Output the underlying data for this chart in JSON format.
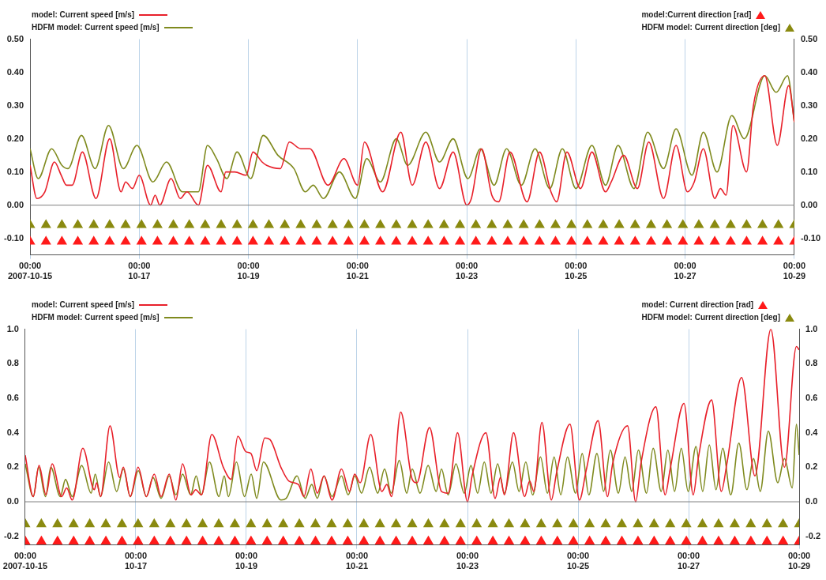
{
  "chart_data": [
    {
      "type": "line",
      "legend": "top",
      "grid": "x",
      "xlim": [
        "2007-10-15T00:00",
        "2007-10-29T00:00"
      ],
      "xticks": [
        {
          "value": "2007-10-15T00:00",
          "label": "00:00\n2007-10-15"
        },
        {
          "value": "2007-10-17T00:00",
          "label": "00:00\n10-17"
        },
        {
          "value": "2007-10-19T00:00",
          "label": "00:00\n10-19"
        },
        {
          "value": "2007-10-21T00:00",
          "label": "00:00\n10-21"
        },
        {
          "value": "2007-10-23T00:00",
          "label": "00:00\n10-23"
        },
        {
          "value": "2007-10-25T00:00",
          "label": "00:00\n10-25"
        },
        {
          "value": "2007-10-27T00:00",
          "label": "00:00\n10-27"
        },
        {
          "value": "2007-10-29T00:00",
          "label": "00:00\n10-29"
        }
      ],
      "x": [
        "2007-10-15T00:00",
        "2007-10-15T07:00",
        "2007-10-15T14:00",
        "2007-10-15T21:00",
        "2007-10-16T04:00",
        "2007-10-16T11:00",
        "2007-10-16T18:00",
        "2007-10-17T01:00",
        "2007-10-17T08:00",
        "2007-10-17T15:00",
        "2007-10-17T22:00",
        "2007-10-18T05:00",
        "2007-10-18T12:00",
        "2007-10-18T19:00",
        "2007-10-19T02:00",
        "2007-10-19T09:00",
        "2007-10-19T16:00",
        "2007-10-19T23:00",
        "2007-10-20T06:00",
        "2007-10-20T13:00",
        "2007-10-20T20:00",
        "2007-10-21T03:00",
        "2007-10-21T10:00",
        "2007-10-21T17:00",
        "2007-10-22T00:00",
        "2007-10-22T07:00",
        "2007-10-22T14:00",
        "2007-10-22T21:00",
        "2007-10-23T04:00",
        "2007-10-23T11:00",
        "2007-10-23T18:00",
        "2007-10-24T01:00",
        "2007-10-24T08:00",
        "2007-10-24T15:00",
        "2007-10-24T22:00",
        "2007-10-25T05:00",
        "2007-10-25T12:00",
        "2007-10-25T19:00",
        "2007-10-26T02:00",
        "2007-10-26T09:00",
        "2007-10-26T16:00",
        "2007-10-26T23:00",
        "2007-10-27T06:00",
        "2007-10-27T13:00",
        "2007-10-27T20:00",
        "2007-10-28T03:00",
        "2007-10-28T10:00",
        "2007-10-28T17:00",
        "2007-10-29T00:00"
      ],
      "ylim": [
        -0.15,
        0.5
      ],
      "yticks": [
        {
          "value": 0.5,
          "label": "0.50"
        },
        {
          "value": 0.4,
          "label": "0.40"
        },
        {
          "value": 0.3,
          "label": "0.30"
        },
        {
          "value": 0.2,
          "label": "0.20"
        },
        {
          "value": 0.1,
          "label": "0.10"
        },
        {
          "value": 0,
          "label": "0.00"
        },
        {
          "value": -0.1,
          "label": "-0.10"
        }
      ],
      "y2lim": [
        -0.15,
        0.5
      ],
      "y2ticks": [
        {
          "value": 0.5,
          "label": "0.50"
        },
        {
          "value": 0.4,
          "label": "0.40"
        },
        {
          "value": 0.3,
          "label": "0.30"
        },
        {
          "value": 0.2,
          "label": "0.20"
        },
        {
          "value": 0.1,
          "label": "0.10"
        },
        {
          "value": 0,
          "label": "0.00"
        },
        {
          "value": -0.1,
          "label": "-0.10"
        }
      ],
      "ref_lines": [
        {
          "axis": "y",
          "value": 0,
          "color": "#808080"
        }
      ],
      "series": [
        {
          "name": "model: Current speed [m/s]",
          "color": "#e8202a",
          "x": [
            "2007-10-15T00:00",
            "2007-10-15T03:00",
            "2007-10-15T06:30",
            "2007-10-15T10:42",
            "2007-10-15T13:42",
            "2007-10-15T16:00",
            "2007-10-15T18:30",
            "2007-10-15T23:00",
            "2007-10-16T05:00",
            "2007-10-16T11:00",
            "2007-10-16T16:00",
            "2007-10-16T18:00",
            "2007-10-16T21:00",
            "2007-10-17T00:00",
            "2007-10-17T05:00",
            "2007-10-17T07:00",
            "2007-10-17T09:00",
            "2007-10-17T14:00",
            "2007-10-17T18:00",
            "2007-10-17T21:00",
            "2007-10-18T02:00",
            "2007-10-18T06:00",
            "2007-10-18T12:00",
            "2007-10-18T14:00",
            "2007-10-18T18:00",
            "2007-10-18T23:00",
            "2007-10-19T02:00",
            "2007-10-19T06:00",
            "2007-10-19T08:00",
            "2007-10-19T14:00",
            "2007-10-19T18:00",
            "2007-10-19T23:00",
            "2007-10-20T03:00",
            "2007-10-20T11:00",
            "2007-10-20T18:00",
            "2007-10-21T00:00",
            "2007-10-21T03:00",
            "2007-10-21T11:00",
            "2007-10-21T19:00",
            "2007-10-22T00:00",
            "2007-10-22T06:00",
            "2007-10-22T12:00",
            "2007-10-22T18:00",
            "2007-10-23T00:00",
            "2007-10-23T02:00",
            "2007-10-23T06:30",
            "2007-10-23T11:00",
            "2007-10-23T14:00",
            "2007-10-23T19:00",
            "2007-10-24T02:30",
            "2007-10-24T08:00",
            "2007-10-24T13:00",
            "2007-10-24T15:30",
            "2007-10-24T20:00",
            "2007-10-25T02:00",
            "2007-10-25T07:00",
            "2007-10-25T13:00",
            "2007-10-25T15:30",
            "2007-10-25T21:00",
            "2007-10-26T03:00",
            "2007-10-26T08:00",
            "2007-10-26T14:30",
            "2007-10-26T20:00",
            "2007-10-27T01:00",
            "2007-10-27T04:00",
            "2007-10-27T08:00",
            "2007-10-27T13:00",
            "2007-10-27T15:30",
            "2007-10-27T18:00",
            "2007-10-27T21:00",
            "2007-10-28T03:00",
            "2007-10-28T06:00",
            "2007-10-28T11:00",
            "2007-10-28T16:30",
            "2007-10-28T21:30",
            "2007-10-29T00:00"
          ],
          "values": [
            0.12,
            0.02,
            0.04,
            0.13,
            0.09,
            0.06,
            0.06,
            0.16,
            0.02,
            0.2,
            0.04,
            0.07,
            0.05,
            0.09,
            0,
            0.03,
            0,
            0.08,
            0.02,
            0.04,
            0,
            0.12,
            0.04,
            0.1,
            0.1,
            0.09,
            0.16,
            0.13,
            0.12,
            0.11,
            0.19,
            0.17,
            0.17,
            0.06,
            0.14,
            0.06,
            0.19,
            0.04,
            0.22,
            0.06,
            0.19,
            0.05,
            0.16,
            0,
            0.02,
            0.17,
            0.03,
            0.01,
            0.16,
            0.01,
            0.16,
            0.04,
            0.01,
            0.16,
            0.05,
            0.16,
            0.04,
            0.07,
            0.15,
            0.05,
            0.19,
            0.02,
            0.18,
            0.04,
            0.07,
            0.17,
            0.02,
            0.05,
            0.03,
            0.24,
            0.1,
            0.3,
            0.39,
            0.18,
            0.36,
            0.25
          ]
        },
        {
          "name": "HDFM model: Current speed [m/s]",
          "color": "#7f8a1e",
          "x": [
            "2007-10-15T00:00",
            "2007-10-15T03:36",
            "2007-10-15T09:30",
            "2007-10-15T14:00",
            "2007-10-15T16:42",
            "2007-10-15T22:36",
            "2007-10-16T04:36",
            "2007-10-16T10:30",
            "2007-10-16T17:00",
            "2007-10-16T23:00",
            "2007-10-17T06:00",
            "2007-10-17T12:00",
            "2007-10-17T19:00",
            "2007-10-18T02:00",
            "2007-10-18T06:00",
            "2007-10-18T10:00",
            "2007-10-18T14:30",
            "2007-10-18T19:00",
            "2007-10-19T01:00",
            "2007-10-19T06:30",
            "2007-10-19T13:00",
            "2007-10-19T20:00",
            "2007-10-20T01:00",
            "2007-10-20T04:30",
            "2007-10-20T09:00",
            "2007-10-20T16:00",
            "2007-10-20T23:00",
            "2007-10-21T04:00",
            "2007-10-21T10:00",
            "2007-10-21T17:00",
            "2007-10-21T22:00",
            "2007-10-22T06:00",
            "2007-10-22T12:00",
            "2007-10-22T18:00",
            "2007-10-23T00:30",
            "2007-10-23T06:00",
            "2007-10-23T12:00",
            "2007-10-23T17:30",
            "2007-10-24T00:00",
            "2007-10-24T06:00",
            "2007-10-24T12:30",
            "2007-10-24T18:00",
            "2007-10-25T00:00",
            "2007-10-25T07:00",
            "2007-10-25T13:00",
            "2007-10-25T18:30",
            "2007-10-26T01:30",
            "2007-10-26T07:30",
            "2007-10-26T14:30",
            "2007-10-26T20:00",
            "2007-10-27T03:00",
            "2007-10-27T08:00",
            "2007-10-27T14:00",
            "2007-10-27T20:30",
            "2007-10-28T02:00",
            "2007-10-28T11:00",
            "2007-10-28T16:00",
            "2007-10-28T21:00",
            "2007-10-29T00:00"
          ],
          "values": [
            0.17,
            0.08,
            0.17,
            0.12,
            0.11,
            0.21,
            0.11,
            0.24,
            0.11,
            0.18,
            0.07,
            0.13,
            0.04,
            0.04,
            0.18,
            0.14,
            0.08,
            0.16,
            0.08,
            0.21,
            0.15,
            0.11,
            0.04,
            0.06,
            0.02,
            0.1,
            0.02,
            0.14,
            0.07,
            0.2,
            0.12,
            0.22,
            0.13,
            0.2,
            0.08,
            0.17,
            0.06,
            0.17,
            0.06,
            0.17,
            0.05,
            0.17,
            0.05,
            0.18,
            0.06,
            0.18,
            0.05,
            0.22,
            0.11,
            0.23,
            0.09,
            0.22,
            0.1,
            0.27,
            0.2,
            0.39,
            0.34,
            0.39,
            0.25
          ]
        },
        {
          "name": "model:Current direction [rad]",
          "type": "scatter",
          "marker": "triangle",
          "color": "#ff1a1a",
          "values": [
            -0.11,
            -0.11,
            -0.11,
            -0.11,
            -0.11,
            -0.11,
            -0.11,
            -0.11,
            -0.11,
            -0.11,
            -0.11,
            -0.11,
            -0.11,
            -0.11,
            -0.11,
            -0.11,
            -0.11,
            -0.11,
            -0.11,
            -0.11,
            -0.11,
            -0.11,
            -0.11,
            -0.11,
            -0.11,
            -0.11,
            -0.11,
            -0.11,
            -0.11,
            -0.11,
            -0.11,
            -0.11,
            -0.11,
            -0.11,
            -0.11,
            -0.11,
            -0.11,
            -0.11,
            -0.11,
            -0.11,
            -0.11,
            -0.11,
            -0.11,
            -0.11,
            -0.11,
            -0.11,
            -0.11,
            -0.11,
            -0.11
          ]
        },
        {
          "name": "HDFM model: Current direction [deg]",
          "type": "scatter",
          "marker": "triangle",
          "color": "#8a8a10",
          "values": [
            -0.06,
            -0.06,
            -0.06,
            -0.06,
            -0.06,
            -0.06,
            -0.06,
            -0.06,
            -0.06,
            -0.06,
            -0.06,
            -0.06,
            -0.06,
            -0.06,
            -0.06,
            -0.06,
            -0.06,
            -0.06,
            -0.06,
            -0.06,
            -0.06,
            -0.06,
            -0.06,
            -0.06,
            -0.06,
            -0.06,
            -0.06,
            -0.06,
            -0.06,
            -0.06,
            -0.06,
            -0.06,
            -0.06,
            -0.06,
            -0.06,
            -0.06,
            -0.06,
            -0.06,
            -0.06,
            -0.06,
            -0.06,
            -0.06,
            -0.06,
            -0.06,
            -0.06,
            -0.06,
            -0.06,
            -0.06,
            -0.06
          ]
        }
      ]
    },
    {
      "type": "line",
      "legend": "top",
      "grid": "x",
      "xlim": [
        "2007-10-15T00:00",
        "2007-10-29T00:00"
      ],
      "xticks": [
        {
          "value": "2007-10-15T00:00",
          "label": "00:00\n2007-10-15"
        },
        {
          "value": "2007-10-17T00:00",
          "label": "00:00\n10-17"
        },
        {
          "value": "2007-10-19T00:00",
          "label": "00:00\n10-19"
        },
        {
          "value": "2007-10-21T00:00",
          "label": "00:00\n10-21"
        },
        {
          "value": "2007-10-23T00:00",
          "label": "00:00\n10-23"
        },
        {
          "value": "2007-10-25T00:00",
          "label": "00:00\n10-25"
        },
        {
          "value": "2007-10-27T00:00",
          "label": "00:00\n10-27"
        },
        {
          "value": "2007-10-29T00:00",
          "label": "00:00\n10-29"
        }
      ],
      "x": [
        "2007-10-15T00:00",
        "2007-10-15T07:00",
        "2007-10-15T14:00",
        "2007-10-15T21:00",
        "2007-10-16T04:00",
        "2007-10-16T11:00",
        "2007-10-16T18:00",
        "2007-10-17T01:00",
        "2007-10-17T08:00",
        "2007-10-17T15:00",
        "2007-10-17T22:00",
        "2007-10-18T05:00",
        "2007-10-18T12:00",
        "2007-10-18T19:00",
        "2007-10-19T02:00",
        "2007-10-19T09:00",
        "2007-10-19T16:00",
        "2007-10-19T23:00",
        "2007-10-20T06:00",
        "2007-10-20T13:00",
        "2007-10-20T20:00",
        "2007-10-21T03:00",
        "2007-10-21T10:00",
        "2007-10-21T17:00",
        "2007-10-22T00:00",
        "2007-10-22T07:00",
        "2007-10-22T14:00",
        "2007-10-22T21:00",
        "2007-10-23T04:00",
        "2007-10-23T11:00",
        "2007-10-23T18:00",
        "2007-10-24T01:00",
        "2007-10-24T08:00",
        "2007-10-24T15:00",
        "2007-10-24T22:00",
        "2007-10-25T05:00",
        "2007-10-25T12:00",
        "2007-10-25T19:00",
        "2007-10-26T02:00",
        "2007-10-26T09:00",
        "2007-10-26T16:00",
        "2007-10-26T23:00",
        "2007-10-27T06:00",
        "2007-10-27T13:00",
        "2007-10-27T20:00",
        "2007-10-28T03:00",
        "2007-10-28T10:00",
        "2007-10-28T17:00",
        "2007-10-29T00:00"
      ],
      "ylim": [
        -0.25,
        1.0
      ],
      "yticks": [
        {
          "value": 1,
          "label": "1.0"
        },
        {
          "value": 0.8,
          "label": "0.8"
        },
        {
          "value": 0.6,
          "label": "0.6"
        },
        {
          "value": 0.4,
          "label": "0.4"
        },
        {
          "value": 0.2,
          "label": "0.2"
        },
        {
          "value": 0,
          "label": "0.0"
        },
        {
          "value": -0.2,
          "label": "-0.2"
        }
      ],
      "y2lim": [
        -0.25,
        1.0
      ],
      "y2ticks": [
        {
          "value": 1,
          "label": "1.0"
        },
        {
          "value": 0.8,
          "label": "0.8"
        },
        {
          "value": 0.6,
          "label": "0.6"
        },
        {
          "value": 0.4,
          "label": "0.4"
        },
        {
          "value": 0.2,
          "label": "0.2"
        },
        {
          "value": 0,
          "label": "0.0"
        },
        {
          "value": -0.2,
          "label": "-0.2"
        }
      ],
      "ref_lines": [
        {
          "axis": "y",
          "value": 0,
          "color": "#808080"
        }
      ],
      "series": [
        {
          "name": "model: Current speed [m/s]",
          "color": "#e8202a",
          "x": [
            "2007-10-15T00:00",
            "2007-10-15T03:30",
            "2007-10-15T06:00",
            "2007-10-15T09:00",
            "2007-10-15T11:42",
            "2007-10-15T15:48",
            "2007-10-15T18:00",
            "2007-10-15T20:24",
            "2007-10-16T01:00",
            "2007-10-16T06:00",
            "2007-10-16T07:00",
            "2007-10-16T08:42",
            "2007-10-16T12:48",
            "2007-10-16T17:00",
            "2007-10-16T18:36",
            "2007-10-16T21:36",
            "2007-10-17T01:00",
            "2007-10-17T04:36",
            "2007-10-17T08:00",
            "2007-10-17T11:00",
            "2007-10-17T14:30",
            "2007-10-17T17:24",
            "2007-10-17T20:18",
            "2007-10-18T00:00",
            "2007-10-18T02:00",
            "2007-10-18T04:30",
            "2007-10-18T09:00",
            "2007-10-18T14:00",
            "2007-10-18T17:24",
            "2007-10-18T20:18",
            "2007-10-18T23:48",
            "2007-10-19T02:00",
            "2007-10-19T04:30",
            "2007-10-19T08:00",
            "2007-10-19T10:18",
            "2007-10-19T15:00",
            "2007-10-19T18:30",
            "2007-10-19T22:36",
            "2007-10-20T01:00",
            "2007-10-20T04:00",
            "2007-10-20T06:48",
            "2007-10-20T09:42",
            "2007-10-20T13:12",
            "2007-10-20T17:18",
            "2007-10-20T20:48",
            "2007-10-20T23:00",
            "2007-10-21T01:24",
            "2007-10-21T06:00",
            "2007-10-21T10:48",
            "2007-10-21T13:00",
            "2007-10-21T15:00",
            "2007-10-21T19:00",
            "2007-10-22T00:00",
            "2007-10-22T02:00",
            "2007-10-22T07:30",
            "2007-10-22T12:42",
            "2007-10-22T15:36",
            "2007-10-22T19:42",
            "2007-10-23T00:00",
            "2007-10-23T02:00",
            "2007-10-23T08:00",
            "2007-10-23T12:00",
            "2007-10-23T14:18",
            "2007-10-23T16:00",
            "2007-10-23T20:00",
            "2007-10-24T00:48",
            "2007-10-24T03:00",
            "2007-10-24T04:48",
            "2007-10-24T08:18",
            "2007-10-24T12:24",
            "2007-10-24T14:42",
            "2007-10-24T20:30",
            "2007-10-25T00:36",
            "2007-10-25T03:30",
            "2007-10-25T08:42",
            "2007-10-25T12:48",
            "2007-10-25T15:00",
            "2007-10-25T21:30",
            "2007-10-26T01:00",
            "2007-10-26T03:24",
            "2007-10-26T09:48",
            "2007-10-26T13:48",
            "2007-10-26T16:00",
            "2007-10-26T22:00",
            "2007-10-27T02:00",
            "2007-10-27T04:18",
            "2007-10-27T10:00",
            "2007-10-27T14:12",
            "2007-10-27T16:36",
            "2007-10-27T23:00",
            "2007-10-28T04:48",
            "2007-10-28T11:42",
            "2007-10-28T17:36",
            "2007-10-28T22:48",
            "2007-10-29T00:00"
          ],
          "values": [
            0.27,
            0.03,
            0.21,
            0.04,
            0.22,
            0.03,
            0.08,
            0.01,
            0.31,
            0.07,
            0.11,
            0.03,
            0.44,
            0.14,
            0.2,
            0.03,
            0.2,
            0.03,
            0.16,
            0.03,
            0.16,
            0.01,
            0.22,
            0.04,
            0.07,
            0.04,
            0.39,
            0.2,
            0.13,
            0.38,
            0.29,
            0.28,
            0.18,
            0.37,
            0.36,
            0.2,
            0.12,
            0.1,
            0.03,
            0.19,
            0.05,
            0.15,
            0.01,
            0.19,
            0.06,
            0.16,
            0.11,
            0.39,
            0.06,
            0.1,
            0.03,
            0.52,
            0.13,
            0.11,
            0.43,
            0.06,
            0.05,
            0.4,
            0,
            0.15,
            0.4,
            0.02,
            0.14,
            0.04,
            0.4,
            0.03,
            0.12,
            0.06,
            0.46,
            0.01,
            0.17,
            0.45,
            0.01,
            0.18,
            0.47,
            0.03,
            0.22,
            0.44,
            0,
            0.23,
            0.55,
            0.04,
            0.19,
            0.57,
            0.04,
            0.26,
            0.59,
            0.06,
            0.22,
            0.72,
            0.15,
            1.0,
            0.2,
            0.9,
            0.88
          ]
        },
        {
          "name": "HDFM model: Current speed [m/s]",
          "color": "#7f8a1e",
          "x": [
            "2007-10-15T00:00",
            "2007-10-15T03:30",
            "2007-10-15T05:48",
            "2007-10-15T08:48",
            "2007-10-15T11:06",
            "2007-10-15T15:12",
            "2007-10-15T17:30",
            "2007-10-15T20:24",
            "2007-10-16T00:30",
            "2007-10-16T04:36",
            "2007-10-16T06:24",
            "2007-10-16T08:42",
            "2007-10-16T12:12",
            "2007-10-16T15:42",
            "2007-10-16T18:36",
            "2007-10-16T21:36",
            "2007-10-17T01:06",
            "2007-10-17T04:36",
            "2007-10-17T07:30",
            "2007-10-17T11:00",
            "2007-10-17T14:30",
            "2007-10-17T17:24",
            "2007-10-17T20:18",
            "2007-10-17T23:48",
            "2007-10-18T02:12",
            "2007-10-18T04:30",
            "2007-10-18T08:00",
            "2007-10-18T12:06",
            "2007-10-18T14:24",
            "2007-10-18T16:12",
            "2007-10-18T19:42",
            "2007-10-18T23:12",
            "2007-10-19T02:06",
            "2007-10-19T04:30",
            "2007-10-19T07:24",
            "2007-10-19T15:00",
            "2007-10-19T17:18",
            "2007-10-19T22:00",
            "2007-10-20T01:30",
            "2007-10-20T04:24",
            "2007-10-20T06:48",
            "2007-10-20T09:42",
            "2007-10-20T13:12",
            "2007-10-20T17:18",
            "2007-10-20T20:12",
            "2007-10-20T23:06",
            "2007-10-21T02:00",
            "2007-10-21T05:30",
            "2007-10-21T09:00",
            "2007-10-21T12:00",
            "2007-10-21T14:54",
            "2007-10-21T18:24",
            "2007-10-21T21:36",
            "2007-10-22T00:00",
            "2007-10-22T03:24",
            "2007-10-22T06:54",
            "2007-10-22T10:24",
            "2007-10-22T12:42",
            "2007-10-22T15:36",
            "2007-10-22T19:00",
            "2007-10-22T22:36",
            "2007-10-23T01:30",
            "2007-10-23T04:24",
            "2007-10-23T07:18",
            "2007-10-23T10:12",
            "2007-10-23T13:06",
            "2007-10-23T16:00",
            "2007-10-23T19:30",
            "2007-10-23T22:24",
            "2007-10-24T01:18",
            "2007-10-24T04:18",
            "2007-10-24T07:42",
            "2007-10-24T10:42",
            "2007-10-24T13:36",
            "2007-10-24T16:30",
            "2007-10-24T19:24",
            "2007-10-24T22:54",
            "2007-10-25T01:48",
            "2007-10-25T04:42",
            "2007-10-25T08:12",
            "2007-10-25T11:06",
            "2007-10-25T14:00",
            "2007-10-25T17:30",
            "2007-10-25T20:24",
            "2007-10-25T23:18",
            "2007-10-26T02:12",
            "2007-10-26T05:42",
            "2007-10-26T08:36",
            "2007-10-26T12:06",
            "2007-10-26T15:00",
            "2007-10-26T17:54",
            "2007-10-26T20:48",
            "2007-10-26T23:48",
            "2007-10-27T03:12",
            "2007-10-27T06:06",
            "2007-10-27T09:00",
            "2007-10-27T11:54",
            "2007-10-27T14:48",
            "2007-10-27T18:18",
            "2007-10-27T21:48",
            "2007-10-28T01:18",
            "2007-10-28T04:12",
            "2007-10-28T07:06",
            "2007-10-28T10:36",
            "2007-10-28T14:42",
            "2007-10-28T17:36",
            "2007-10-28T21:00",
            "2007-10-28T22:48",
            "2007-10-29T00:00"
          ],
          "values": [
            0.22,
            0.03,
            0.2,
            0.03,
            0.2,
            0.03,
            0.13,
            0.03,
            0.21,
            0.05,
            0.16,
            0.03,
            0.23,
            0.06,
            0.19,
            0.03,
            0.18,
            0.03,
            0.14,
            0.02,
            0.15,
            0.04,
            0.16,
            0.04,
            0.15,
            0.04,
            0.23,
            0.03,
            0.15,
            0.03,
            0.23,
            0.03,
            0.16,
            0.02,
            0.23,
            0.01,
            0.02,
            0.15,
            0.02,
            0.1,
            0.02,
            0.15,
            0.03,
            0.15,
            0.04,
            0.15,
            0.05,
            0.2,
            0.05,
            0.19,
            0.05,
            0.24,
            0.05,
            0.19,
            0.05,
            0.21,
            0.06,
            0.19,
            0.04,
            0.22,
            0.05,
            0.21,
            0.05,
            0.23,
            0.05,
            0.22,
            0.05,
            0.23,
            0.06,
            0.23,
            0.04,
            0.26,
            0.05,
            0.26,
            0.04,
            0.26,
            0.05,
            0.28,
            0.04,
            0.28,
            0.06,
            0.3,
            0.05,
            0.26,
            0.06,
            0.3,
            0.05,
            0.31,
            0.06,
            0.3,
            0.06,
            0.31,
            0.06,
            0.32,
            0.06,
            0.33,
            0.07,
            0.31,
            0.04,
            0.34,
            0.07,
            0.25,
            0.06,
            0.41,
            0.11,
            0.25,
            0.08,
            0.45,
            0.27
          ]
        },
        {
          "name": "model: Current direction [rad]",
          "type": "scatter",
          "marker": "triangle",
          "color": "#ff1a1a",
          "values": [
            -0.23,
            -0.23,
            -0.23,
            -0.23,
            -0.23,
            -0.23,
            -0.23,
            -0.23,
            -0.23,
            -0.23,
            -0.23,
            -0.23,
            -0.23,
            -0.23,
            -0.23,
            -0.23,
            -0.23,
            -0.23,
            -0.23,
            -0.23,
            -0.23,
            -0.23,
            -0.23,
            -0.23,
            -0.23,
            -0.23,
            -0.23,
            -0.23,
            -0.23,
            -0.23,
            -0.23,
            -0.23,
            -0.23,
            -0.23,
            -0.23,
            -0.23,
            -0.23,
            -0.23,
            -0.23,
            -0.23,
            -0.23,
            -0.23,
            -0.23,
            -0.23,
            -0.23,
            -0.23,
            -0.23,
            -0.23,
            -0.23
          ]
        },
        {
          "name": "HDFM model: Current direction [deg]",
          "type": "scatter",
          "marker": "triangle",
          "color": "#8a8a10",
          "values": [
            -0.13,
            -0.13,
            -0.13,
            -0.13,
            -0.13,
            -0.13,
            -0.13,
            -0.13,
            -0.13,
            -0.13,
            -0.13,
            -0.13,
            -0.13,
            -0.13,
            -0.13,
            -0.13,
            -0.13,
            -0.13,
            -0.13,
            -0.13,
            -0.13,
            -0.13,
            -0.13,
            -0.13,
            -0.13,
            -0.13,
            -0.13,
            -0.13,
            -0.13,
            -0.13,
            -0.13,
            -0.13,
            -0.13,
            -0.13,
            -0.13,
            -0.13,
            -0.13,
            -0.13,
            -0.13,
            -0.13,
            -0.13,
            -0.13,
            -0.13,
            -0.13,
            -0.13,
            -0.13,
            -0.13,
            -0.13,
            -0.13
          ]
        }
      ]
    }
  ]
}
